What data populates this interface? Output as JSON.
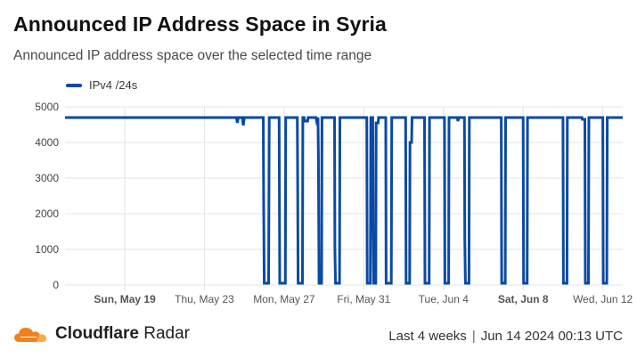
{
  "header": {
    "title": "Announced IP Address Space in Syria",
    "subtitle": "Announced IP address space over the selected time range"
  },
  "brand": {
    "name_bold": "Cloudflare",
    "name_light": "Radar"
  },
  "footer": {
    "range": "Last 4 weeks",
    "separator": "|",
    "timestamp": "Jun 14 2024 00:13 UTC"
  },
  "colors": {
    "series": "#0a4aa3",
    "grid": "#e3e3e3",
    "logo_orange": "#f38020",
    "logo_light": "#faae40"
  },
  "chart_data": {
    "type": "line",
    "series": [
      {
        "name": "IPv4 /24s",
        "points": [
          [
            0,
            4700
          ],
          [
            8.6,
            4700
          ],
          [
            8.65,
            4550
          ],
          [
            8.7,
            4700
          ],
          [
            8.9,
            4700
          ],
          [
            8.95,
            4480
          ],
          [
            9.0,
            4700
          ],
          [
            9.95,
            4700
          ],
          [
            9.97,
            2500
          ],
          [
            10.0,
            50
          ],
          [
            10.22,
            50
          ],
          [
            10.25,
            4700
          ],
          [
            10.75,
            4700
          ],
          [
            10.78,
            50
          ],
          [
            11.06,
            50
          ],
          [
            11.08,
            4700
          ],
          [
            11.66,
            4700
          ],
          [
            11.68,
            3000
          ],
          [
            11.7,
            50
          ],
          [
            11.92,
            50
          ],
          [
            11.94,
            4700
          ],
          [
            12.0,
            4700
          ],
          [
            12.03,
            4600
          ],
          [
            12.18,
            4600
          ],
          [
            12.2,
            4700
          ],
          [
            12.6,
            4700
          ],
          [
            12.63,
            4600
          ],
          [
            12.7,
            4700
          ],
          [
            12.72,
            3600
          ],
          [
            12.75,
            50
          ],
          [
            12.88,
            50
          ],
          [
            12.9,
            4700
          ],
          [
            13.53,
            4700
          ],
          [
            13.55,
            1000
          ],
          [
            13.58,
            50
          ],
          [
            13.78,
            50
          ],
          [
            13.8,
            4700
          ],
          [
            15.15,
            4700
          ],
          [
            15.17,
            50
          ],
          [
            15.33,
            50
          ],
          [
            15.35,
            4700
          ],
          [
            15.45,
            4700
          ],
          [
            15.47,
            1500
          ],
          [
            15.5,
            50
          ],
          [
            15.6,
            50
          ],
          [
            15.62,
            4550
          ],
          [
            15.72,
            4550
          ],
          [
            15.74,
            4700
          ],
          [
            16.1,
            4700
          ],
          [
            16.12,
            50
          ],
          [
            16.38,
            50
          ],
          [
            16.4,
            4700
          ],
          [
            17.1,
            4700
          ],
          [
            17.12,
            50
          ],
          [
            17.3,
            50
          ],
          [
            17.32,
            4000
          ],
          [
            17.4,
            4000
          ],
          [
            17.42,
            4700
          ],
          [
            18.05,
            4700
          ],
          [
            18.07,
            50
          ],
          [
            18.28,
            50
          ],
          [
            18.3,
            4700
          ],
          [
            19.05,
            4700
          ],
          [
            19.07,
            50
          ],
          [
            19.26,
            50
          ],
          [
            19.28,
            4700
          ],
          [
            19.7,
            4700
          ],
          [
            19.72,
            4600
          ],
          [
            19.78,
            4700
          ],
          [
            20.05,
            4700
          ],
          [
            20.07,
            1300
          ],
          [
            20.1,
            50
          ],
          [
            20.28,
            50
          ],
          [
            20.3,
            4700
          ],
          [
            21.9,
            4700
          ],
          [
            21.92,
            50
          ],
          [
            22.1,
            50
          ],
          [
            22.12,
            4700
          ],
          [
            23.0,
            4700
          ],
          [
            23.02,
            50
          ],
          [
            23.2,
            50
          ],
          [
            23.22,
            4700
          ],
          [
            25.0,
            4700
          ],
          [
            25.02,
            50
          ],
          [
            25.2,
            50
          ],
          [
            25.22,
            4700
          ],
          [
            25.95,
            4700
          ],
          [
            25.97,
            4650
          ],
          [
            26.1,
            4650
          ],
          [
            26.12,
            50
          ],
          [
            26.28,
            50
          ],
          [
            26.3,
            4700
          ],
          [
            27.0,
            4700
          ],
          [
            27.02,
            50
          ],
          [
            27.2,
            50
          ],
          [
            27.22,
            4700
          ],
          [
            28.0,
            4700
          ]
        ]
      }
    ],
    "x_ticks": [
      {
        "day": 3,
        "label": "Sun, May 19",
        "bold": true
      },
      {
        "day": 7,
        "label": "Thu, May 23",
        "bold": false
      },
      {
        "day": 11,
        "label": "Mon, May 27",
        "bold": false
      },
      {
        "day": 15,
        "label": "Fri, May 31",
        "bold": false
      },
      {
        "day": 19,
        "label": "Tue, Jun 4",
        "bold": false
      },
      {
        "day": 23,
        "label": "Sat, Jun 8",
        "bold": true
      },
      {
        "day": 27,
        "label": "Wed, Jun 12",
        "bold": false
      }
    ],
    "y_ticks": [
      0,
      1000,
      2000,
      3000,
      4000,
      5000
    ],
    "ylim": [
      0,
      5000
    ],
    "xlim_days": [
      0,
      28
    ],
    "grid": true,
    "legend_position": "top-left"
  }
}
